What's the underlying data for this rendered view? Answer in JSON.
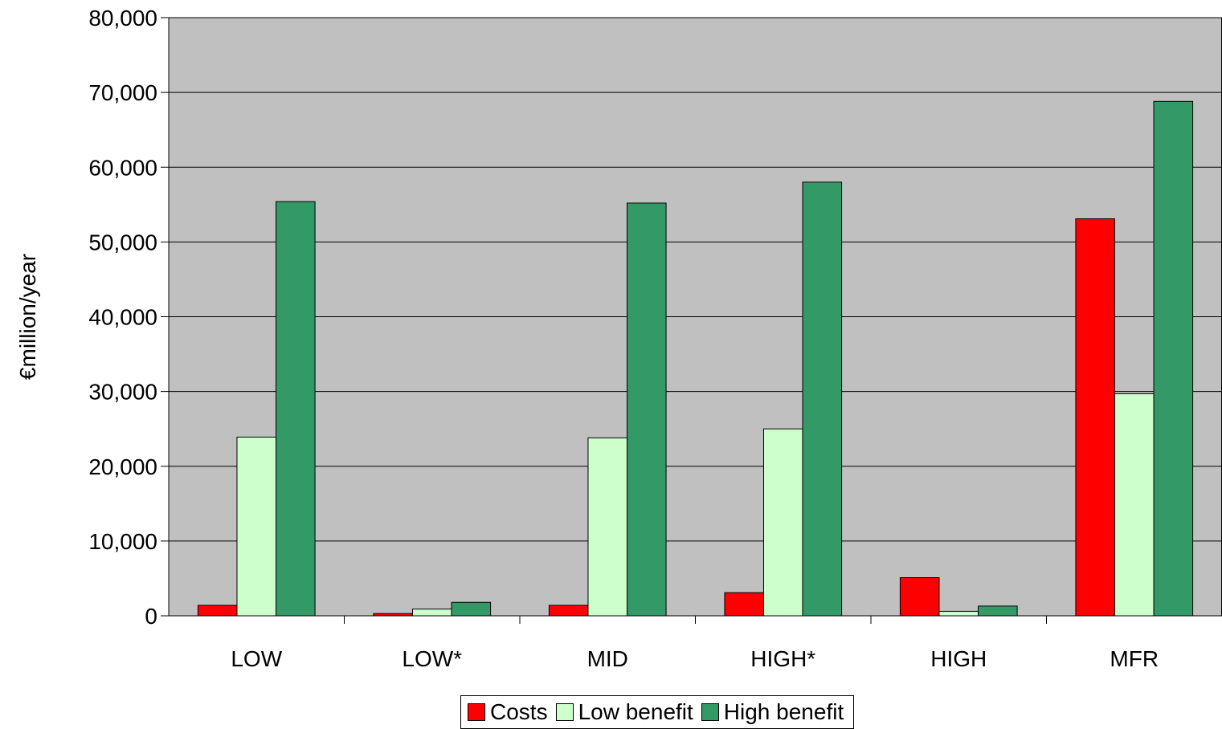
{
  "chart_data": {
    "type": "bar",
    "title": "",
    "xlabel": "",
    "ylabel": "€million/year",
    "ylim": [
      0,
      80000
    ],
    "yticks": [
      0,
      10000,
      20000,
      30000,
      40000,
      50000,
      60000,
      70000,
      80000
    ],
    "ytick_labels": [
      "0",
      "10,000",
      "20,000",
      "30,000",
      "40,000",
      "50,000",
      "60,000",
      "70,000",
      "80,000"
    ],
    "grid": true,
    "legend_position": "bottom",
    "categories": [
      "LOW",
      "LOW*",
      "MID",
      "HIGH*",
      "HIGH",
      "MFR"
    ],
    "series": [
      {
        "name": "Costs",
        "color": "#ff0000",
        "values": [
          1400,
          300,
          1400,
          3100,
          5100,
          53100
        ]
      },
      {
        "name": "Low benefit",
        "color": "#ccffcc",
        "values": [
          23900,
          900,
          23800,
          25000,
          600,
          29700
        ]
      },
      {
        "name": "High benefit",
        "color": "#339966",
        "values": [
          55400,
          1800,
          55200,
          58000,
          1300,
          68800
        ]
      }
    ],
    "plot_background": "#c0c0c0"
  }
}
